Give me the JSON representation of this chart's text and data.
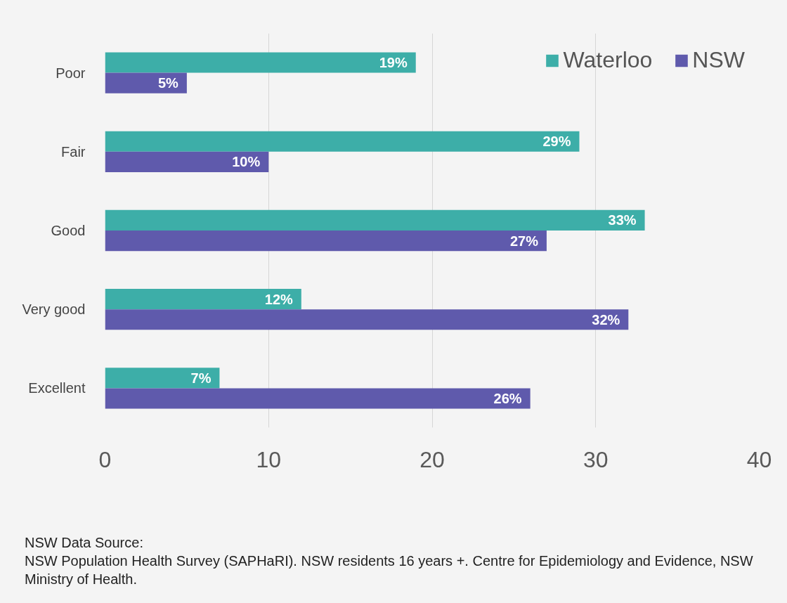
{
  "chart_data": {
    "type": "bar",
    "orientation": "horizontal",
    "categories": [
      "Poor",
      "Fair",
      "Good",
      "Very good",
      "Excellent"
    ],
    "series": [
      {
        "name": "Waterloo",
        "color": "#3daea8",
        "values": [
          19,
          29,
          33,
          12,
          7
        ],
        "value_labels": [
          "19%",
          "29%",
          "33%",
          "12%",
          "7%"
        ]
      },
      {
        "name": "NSW",
        "color": "#5f5aac",
        "values": [
          5,
          10,
          27,
          32,
          26
        ],
        "value_labels": [
          "5%",
          "10%",
          "27%",
          "32%",
          "26%"
        ]
      }
    ],
    "xlim": [
      0,
      40
    ],
    "xticks": [
      0,
      10,
      20,
      30,
      40
    ],
    "grid": "x",
    "legend": "top right",
    "annotations": [
      "NSW Data Source:",
      "NSW Population Health Survey (SAPHaRI). NSW residents 16 years +. Centre for Epidemiology and Evidence, NSW Ministry of Health."
    ]
  }
}
